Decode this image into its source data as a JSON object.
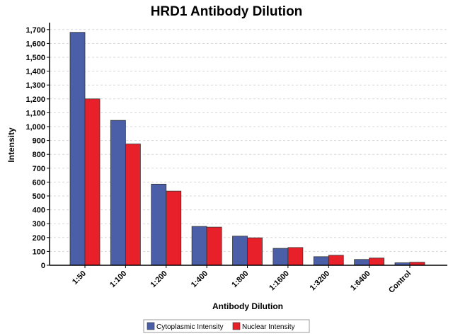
{
  "chart_data": {
    "type": "bar",
    "title": "HRD1 Antibody Dilution",
    "xlabel": "Antibody Dilution",
    "ylabel": "Intensity",
    "categories": [
      "1:50",
      "1:100",
      "1:200",
      "1:400",
      "1:800",
      "1:1600",
      "1:3200",
      "1:6400",
      "Control"
    ],
    "series": [
      {
        "name": "Cytoplasmic Intensity",
        "color": "#4a5fa8",
        "values": [
          1680,
          1045,
          585,
          280,
          210,
          122,
          62,
          42,
          18
        ]
      },
      {
        "name": "Nuclear Intensity",
        "color": "#e8202a",
        "values": [
          1200,
          875,
          535,
          275,
          198,
          128,
          72,
          52,
          22
        ]
      }
    ],
    "yticks": [
      0,
      100,
      200,
      300,
      400,
      500,
      600,
      700,
      800,
      900,
      1000,
      1100,
      1200,
      1300,
      1400,
      1500,
      1600,
      1700
    ],
    "ytick_labels": [
      "0",
      "100",
      "200",
      "300",
      "400",
      "500",
      "600",
      "700",
      "800",
      "900",
      "1,000",
      "1,100",
      "1,200",
      "1,300",
      "1,400",
      "1,500",
      "1,600",
      "1,700"
    ],
    "ylim": [
      0,
      1750
    ],
    "grid": true,
    "legend_position": "bottom"
  }
}
